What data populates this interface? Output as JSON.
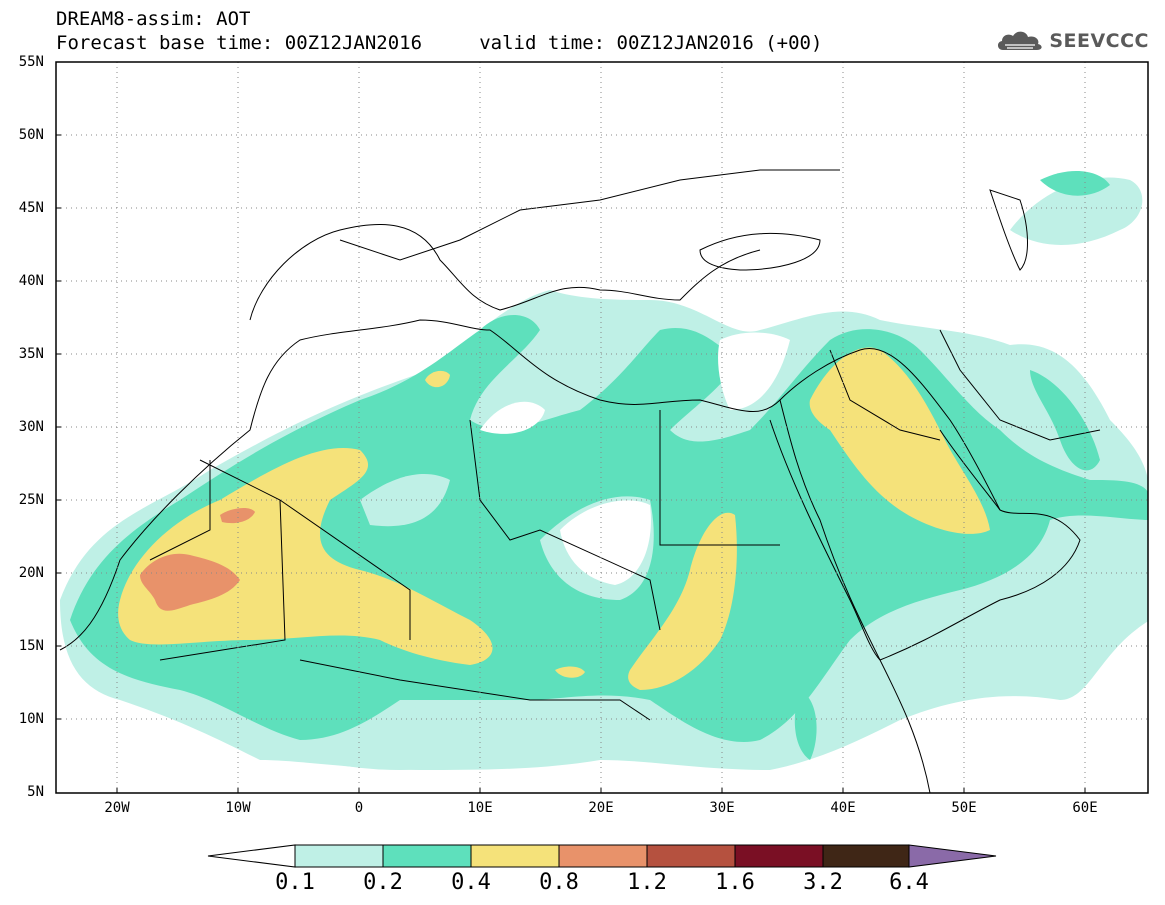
{
  "header": {
    "title_line1": "DREAM8-assim: AOT",
    "title_line2": "Forecast base time: 00Z12JAN2016     valid time: 00Z12JAN2016 (+00)",
    "logo_text": "SEEVCCC"
  },
  "map": {
    "region": "North Africa, Middle East and Europe",
    "lat_labels": [
      "55N",
      "50N",
      "45N",
      "40N",
      "35N",
      "30N",
      "25N",
      "20N",
      "15N",
      "10N",
      "5N"
    ],
    "lon_labels": [
      "20W",
      "10W",
      "0",
      "10E",
      "20E",
      "30E",
      "40E",
      "50E",
      "60E"
    ]
  },
  "colorbar": {
    "labels": [
      "0.1",
      "0.2",
      "0.4",
      "0.8",
      "1.2",
      "1.6",
      "3.2",
      "6.4"
    ],
    "colors": [
      "#bff0e6",
      "#5ee0bc",
      "#f5e27a",
      "#e8926a",
      "#b5513f",
      "#7a0f24",
      "#3f2616",
      "#8a6aa8"
    ]
  }
}
